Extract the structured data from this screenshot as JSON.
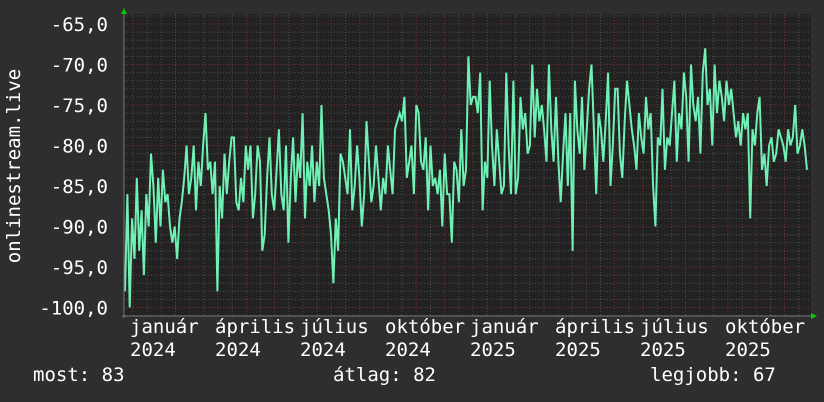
{
  "chart_data": {
    "type": "line",
    "ylabel": "onlinestream.live",
    "ylim": [
      -101,
      -64
    ],
    "yticks": [
      "-65,0",
      "-70,0",
      "-75,0",
      "-80,0",
      "-85,0",
      "-90,0",
      "-95,0",
      "-100,0"
    ],
    "ytick_values": [
      -65,
      -70,
      -75,
      -80,
      -85,
      -90,
      -95,
      -100
    ],
    "x_labels": [
      {
        "month": "január",
        "year": "2024"
      },
      {
        "month": "április",
        "year": "2024"
      },
      {
        "month": "július",
        "year": "2024"
      },
      {
        "month": "október",
        "year": "2024"
      },
      {
        "month": "január",
        "year": "2025"
      },
      {
        "month": "április",
        "year": "2025"
      },
      {
        "month": "július",
        "year": "2025"
      },
      {
        "month": "október",
        "year": "2025"
      }
    ],
    "grid": true,
    "line_color": "#6ff0b4",
    "values": [
      -98,
      -86,
      -100,
      -89,
      -94,
      -84,
      -93,
      -88,
      -96,
      -86,
      -90,
      -81,
      -85,
      -92,
      -84,
      -90,
      -83,
      -87,
      -86,
      -90,
      -92,
      -90,
      -94,
      -89,
      -87,
      -84,
      -80,
      -86,
      -84,
      -80,
      -88,
      -82,
      -85,
      -80,
      -76,
      -83,
      -82,
      -86,
      -82,
      -98,
      -85,
      -89,
      -81,
      -86,
      -82,
      -79,
      -79,
      -87,
      -88,
      -84,
      -87,
      -80,
      -83,
      -80,
      -89,
      -86,
      -80,
      -82,
      -93,
      -91,
      -84,
      -79,
      -86,
      -88,
      -83,
      -78,
      -86,
      -88,
      -80,
      -92,
      -84,
      -79,
      -87,
      -81,
      -84,
      -76,
      -89,
      -82,
      -85,
      -80,
      -87,
      -82,
      -85,
      -75,
      -84,
      -86,
      -88,
      -91,
      -97,
      -89,
      -93,
      -81,
      -82,
      -84,
      -86,
      -78,
      -88,
      -85,
      -80,
      -84,
      -90,
      -86,
      -77,
      -82,
      -87,
      -85,
      -80,
      -84,
      -88,
      -84,
      -86,
      -80,
      -83,
      -86,
      -78,
      -77,
      -76,
      -77,
      -74,
      -84,
      -82,
      -80,
      -86,
      -75,
      -76,
      -82,
      -83,
      -79,
      -88,
      -80,
      -85,
      -84,
      -86,
      -83,
      -90,
      -81,
      -86,
      -86,
      -92,
      -82,
      -83,
      -87,
      -78,
      -85,
      -83,
      -69,
      -75,
      -74,
      -74,
      -76,
      -71,
      -88,
      -82,
      -84,
      -72,
      -80,
      -85,
      -78,
      -82,
      -86,
      -85,
      -71,
      -80,
      -86,
      -72,
      -86,
      -84,
      -74,
      -78,
      -76,
      -81,
      -80,
      -70,
      -79,
      -73,
      -77,
      -75,
      -78,
      -82,
      -70,
      -78,
      -82,
      -74,
      -82,
      -87,
      -81,
      -76,
      -85,
      -76,
      -93,
      -72,
      -78,
      -81,
      -74,
      -83,
      -78,
      -73,
      -70,
      -78,
      -86,
      -76,
      -78,
      -82,
      -77,
      -71,
      -85,
      -80,
      -73,
      -73,
      -81,
      -84,
      -77,
      -72,
      -75,
      -78,
      -80,
      -83,
      -76,
      -79,
      -81,
      -74,
      -78,
      -76,
      -85,
      -90,
      -79,
      -80,
      -73,
      -83,
      -79,
      -80,
      -76,
      -72,
      -82,
      -76,
      -78,
      -71,
      -74,
      -82,
      -70,
      -75,
      -77,
      -74,
      -81,
      -71,
      -68,
      -75,
      -73,
      -80,
      -70,
      -76,
      -72,
      -74,
      -77,
      -72,
      -75,
      -73,
      -76,
      -79,
      -77,
      -80,
      -76,
      -78,
      -76,
      -89,
      -78,
      -80,
      -76,
      -74,
      -83,
      -81,
      -85,
      -80,
      -79,
      -82,
      -81,
      -78,
      -79,
      -80,
      -82,
      -78,
      -80,
      -79,
      -75,
      -81,
      -80,
      -78,
      -80,
      -83
    ]
  },
  "stats": {
    "current": "most: 83",
    "average": "átlag: 82",
    "best": "legjobb: 67"
  },
  "colors": {
    "background": "#2e2e2e",
    "plot_background": "#222222",
    "major_grid": "#7a3030",
    "minor_grid": "#505050",
    "arrow": "#00cc00"
  }
}
